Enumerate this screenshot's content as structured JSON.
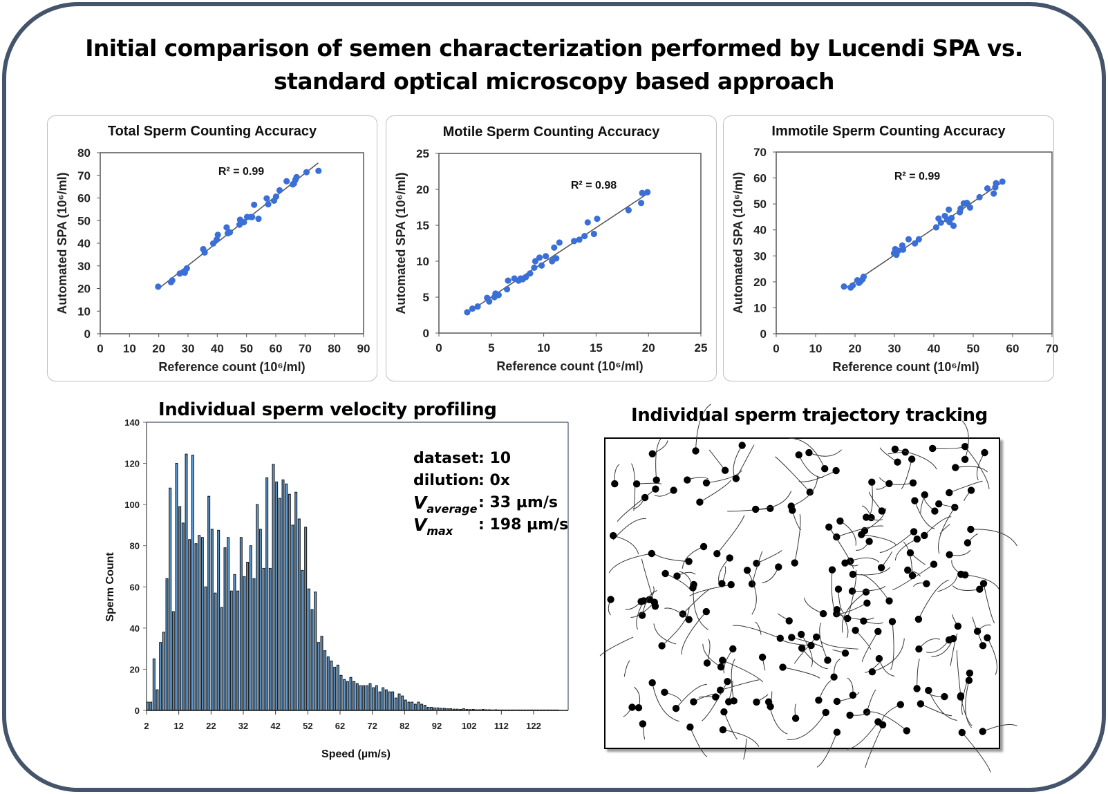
{
  "header": {
    "title_line1": "Initial comparison of semen characterization performed by Lucendi SPA vs.",
    "title_line2": "standard optical microscopy based approach"
  },
  "colors": {
    "frame": "#44546A",
    "scatter_point": "#3A6FD8",
    "fit_line": "#555555",
    "bar_fill": "#5B9BD5",
    "bar_edge": "#1a1a1a"
  },
  "sections": {
    "velocity_title": "Individual sperm velocity profiling",
    "trajectory_title": "Individual sperm trajectory tracking"
  },
  "stats": {
    "dataset_label": "dataset",
    "dataset_value": ": 10",
    "dilution_label": "dilution",
    "dilution_value": ": 0x",
    "vavg_symbol": "V",
    "vavg_sub": "average",
    "vavg_value": ": 33 µm/s",
    "vmax_symbol": "V",
    "vmax_sub": "max",
    "vmax_value": ": 198 µm/s"
  },
  "chart_data": [
    {
      "type": "scatter",
      "title": "Total Sperm Counting Accuracy",
      "xlabel": "Reference count (10⁶/ml)",
      "ylabel": "Automated SPA (10⁶/ml)",
      "xlim": [
        0,
        90
      ],
      "ylim": [
        0,
        80
      ],
      "xticks": [
        0,
        10,
        20,
        30,
        40,
        50,
        60,
        70,
        80,
        90
      ],
      "yticks": [
        0,
        10,
        20,
        30,
        40,
        50,
        60,
        70,
        80
      ],
      "annotation": "R² = 0.99",
      "fit": [
        [
          20,
          20
        ],
        [
          74.5,
          75.5
        ]
      ],
      "x": [
        19.8,
        24.2,
        24.6,
        27.2,
        28.5,
        28.9,
        29.6,
        35.2,
        35.7,
        38.6,
        39.8,
        40.2,
        43.2,
        43.6,
        44.3,
        47.6,
        47.8,
        49.1,
        50.2,
        51.5,
        51.9,
        52.6,
        54.1,
        56.9,
        57.4,
        59.4,
        60.1,
        61.3,
        63.7,
        65.8,
        66.2,
        66.7,
        67.1,
        70.5,
        74.6
      ],
      "y": [
        20.8,
        22.8,
        23.6,
        26.6,
        27.4,
        27.0,
        28.9,
        37.4,
        35.9,
        39.9,
        41.6,
        43.7,
        47.0,
        44.4,
        44.8,
        48.2,
        50.4,
        49.3,
        51.6,
        51.6,
        51.6,
        57.0,
        50.8,
        59.8,
        57.2,
        58.8,
        60.6,
        63.4,
        67.4,
        66.0,
        66.4,
        68.0,
        69.2,
        71.4,
        72.0
      ]
    },
    {
      "type": "scatter",
      "title": "Motile Sperm Counting Accuracy",
      "xlabel": "Reference count (10⁶/ml)",
      "ylabel": "Automated SPA (10⁶/ml)",
      "xlim": [
        0,
        25
      ],
      "ylim": [
        0,
        25
      ],
      "xticks": [
        0,
        5,
        10,
        15,
        20,
        25
      ],
      "yticks": [
        0,
        5,
        10,
        15,
        20,
        25
      ],
      "annotation": "R² = 0.98",
      "fit": [
        [
          2.7,
          2.8
        ],
        [
          19.9,
          19.4
        ]
      ],
      "x": [
        2.7,
        3.2,
        3.7,
        4.6,
        4.8,
        5.3,
        5.4,
        5.7,
        6.5,
        6.6,
        7.2,
        7.6,
        7.8,
        8.0,
        8.3,
        8.7,
        9.1,
        9.2,
        9.6,
        9.8,
        10.2,
        10.8,
        11.0,
        11.1,
        11.2,
        11.5,
        12.9,
        13.4,
        13.9,
        14.2,
        14.8,
        15.1,
        18.1,
        19.3,
        19.4,
        19.9
      ],
      "y": [
        2.9,
        3.4,
        3.7,
        4.9,
        4.4,
        5.0,
        5.5,
        5.3,
        6.1,
        7.3,
        7.6,
        7.3,
        7.6,
        7.5,
        7.8,
        8.3,
        9.1,
        10.0,
        10.5,
        9.4,
        10.7,
        10.0,
        11.9,
        10.4,
        10.4,
        12.6,
        12.8,
        13.0,
        13.5,
        15.4,
        13.8,
        15.9,
        17.1,
        18.1,
        19.5,
        19.6
      ]
    },
    {
      "type": "scatter",
      "title": "Immotile Sperm Counting Accuracy",
      "xlabel": "Reference count (10⁶/ml)",
      "ylabel": "Automated SPA (10⁶/ml)",
      "xlim": [
        0,
        70
      ],
      "ylim": [
        0,
        70
      ],
      "xticks": [
        0,
        10,
        20,
        30,
        40,
        50,
        60,
        70
      ],
      "yticks": [
        0,
        10,
        20,
        30,
        40,
        50,
        60,
        70
      ],
      "annotation": "R² = 0.99",
      "fit": [
        [
          17.5,
          17.5
        ],
        [
          57.5,
          58.5
        ]
      ],
      "x": [
        17.2,
        18.9,
        19.4,
        20.6,
        21.0,
        21.4,
        21.9,
        22.2,
        29.9,
        30.2,
        30.5,
        31.0,
        32.0,
        32.2,
        33.6,
        35.2,
        36.2,
        40.6,
        41.2,
        41.8,
        42.8,
        43.4,
        43.8,
        44.0,
        44.5,
        45.0,
        46.6,
        46.8,
        47.6,
        48.4,
        49.2,
        51.6,
        53.6,
        55.2,
        55.6,
        55.8,
        57.4
      ],
      "y": [
        18.2,
        17.8,
        18.6,
        20.6,
        19.6,
        20.2,
        21.0,
        22.0,
        31.0,
        32.6,
        30.4,
        32.0,
        34.0,
        32.4,
        36.4,
        34.8,
        36.4,
        41.0,
        44.4,
        42.8,
        45.4,
        44.0,
        47.8,
        43.0,
        44.6,
        41.6,
        46.8,
        48.2,
        50.2,
        50.4,
        48.6,
        52.6,
        56.0,
        54.0,
        56.4,
        58.0,
        58.6
      ]
    },
    {
      "type": "bar",
      "title": "Individual sperm velocity profiling",
      "xlabel": "Speed (µm/s)",
      "ylabel": "Sperm Count",
      "ylim": [
        0,
        140
      ],
      "yticks": [
        0,
        20,
        40,
        60,
        80,
        100,
        120,
        140
      ],
      "xticks": [
        2,
        12,
        22,
        32,
        42,
        52,
        62,
        72,
        82,
        92,
        102,
        112,
        122
      ],
      "x_start": 2,
      "x_step": 1,
      "values": [
        4,
        4,
        25,
        10,
        33,
        38,
        64,
        108,
        48,
        120,
        99,
        91,
        124.5,
        83,
        124,
        81,
        85,
        84,
        60,
        104,
        88,
        57,
        87.5,
        50,
        79,
        84,
        58,
        66,
        58,
        84,
        65,
        72,
        80,
        64,
        100,
        88,
        69,
        113,
        69,
        119.5,
        111,
        103,
        112,
        110,
        105,
        90,
        106,
        93,
        68,
        89,
        59,
        49,
        57.5,
        33,
        36,
        29,
        26,
        24,
        21,
        22,
        17,
        15,
        14,
        16,
        14,
        13,
        12,
        12,
        12,
        13,
        11,
        12,
        9,
        11,
        10,
        9,
        9,
        6,
        8,
        7,
        5,
        4,
        4,
        3,
        4,
        3,
        2.5,
        1.5,
        1.5,
        1.2,
        1.2,
        1,
        1,
        0.8,
        0.8,
        0.6,
        0.6,
        0.5,
        0.8,
        0.5,
        0.4,
        0.5,
        0.3,
        0.3,
        0.5,
        0.3,
        0.3,
        0.2,
        0.3,
        0.2,
        0.2,
        0.2,
        0.2,
        0.2,
        0.2,
        0.2,
        0.2,
        0.2,
        0.2,
        0.2,
        0.2,
        0.2,
        0.2,
        0.2,
        0.2,
        0.2,
        0.2,
        0.2
      ]
    }
  ]
}
